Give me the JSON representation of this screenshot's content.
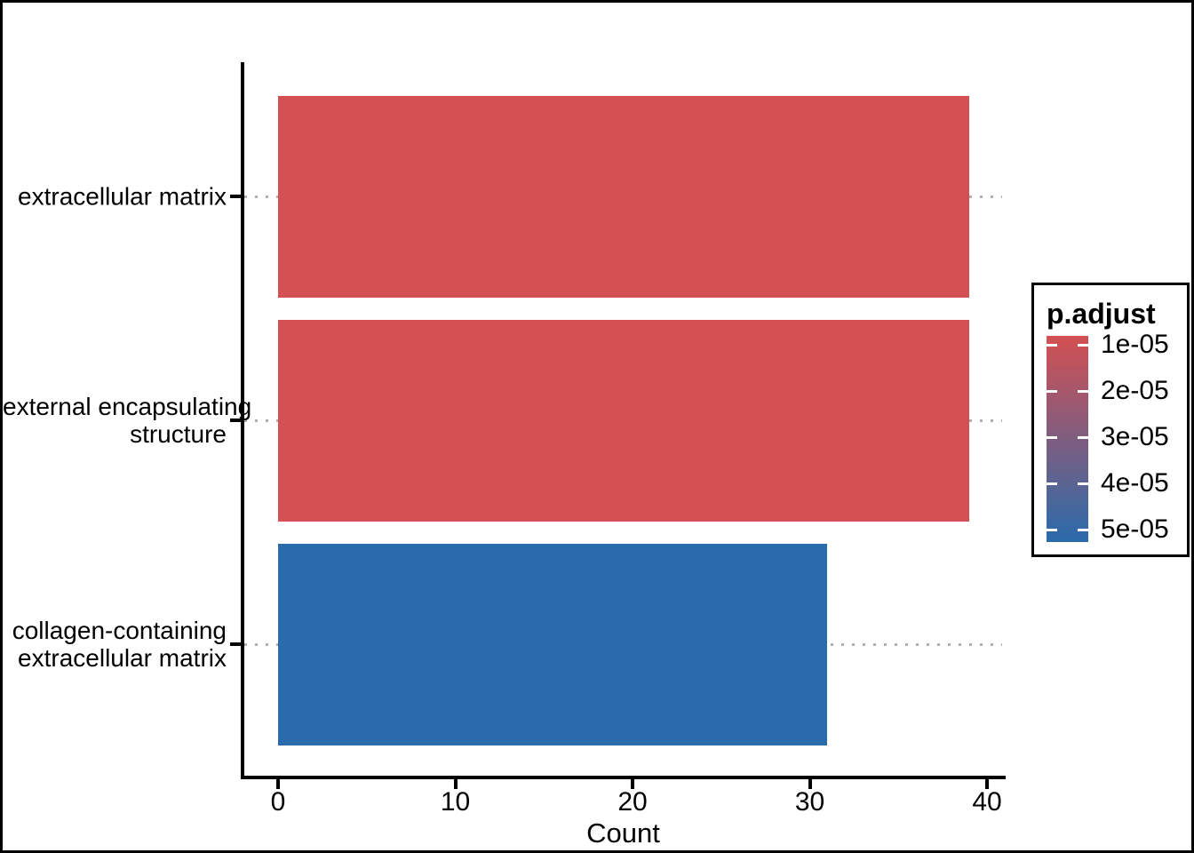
{
  "chart_data": {
    "type": "bar",
    "orientation": "horizontal",
    "title": "",
    "xlabel": "Count",
    "ylabel": "",
    "xlim": [
      0,
      40
    ],
    "x_ticks": [
      0,
      10,
      20,
      30,
      40
    ],
    "grid": "dotted horizontal line at each category center",
    "categories": [
      {
        "label_lines": [
          "extracellular matrix"
        ],
        "value": 39,
        "color": "#d45052",
        "p_adjust_from_color": "≈1e-05"
      },
      {
        "label_lines": [
          "external encapsulating",
          "structure"
        ],
        "value": 39,
        "color": "#d45052",
        "p_adjust_from_color": "≈1e-05"
      },
      {
        "label_lines": [
          "collagen-containing",
          "extracellular matrix"
        ],
        "value": 31,
        "color": "#2a6bac",
        "p_adjust_from_color": "≈5e-05"
      }
    ],
    "legend": {
      "title": "p.adjust",
      "position": "right",
      "type": "colorbar",
      "tick_labels": [
        "1e-05",
        "2e-05",
        "3e-05",
        "4e-05",
        "5e-05"
      ],
      "gradient_top_color": "#d45052",
      "gradient_bottom_color": "#2a6bac",
      "tick_color": "#ffffff"
    },
    "colors": {
      "axis": "#000000",
      "gridline": "#aeaeae",
      "background": "#ffffff",
      "frame": "#000000"
    }
  }
}
